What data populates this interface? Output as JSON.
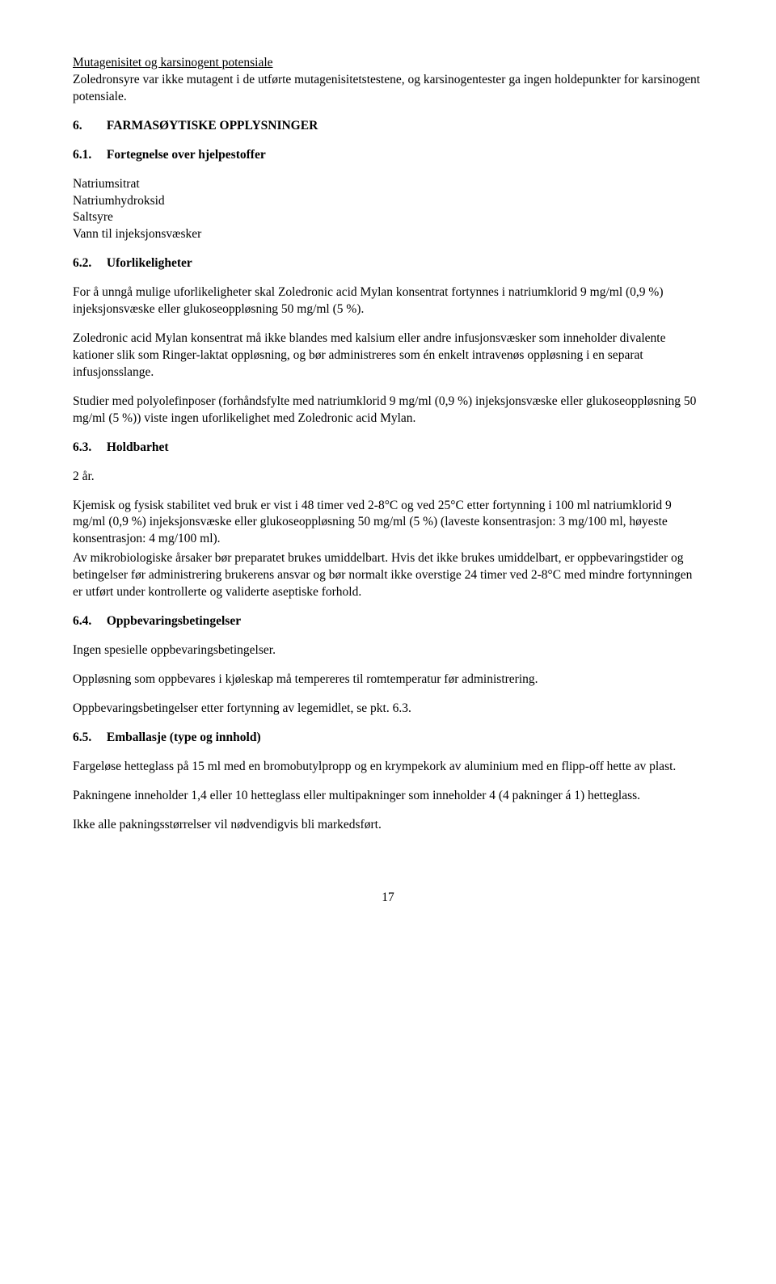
{
  "section_mutagen": {
    "heading": "Mutagenisitet og karsinogent potensiale",
    "body": "Zoledronsyre var ikke mutagent i de utførte mutagenisitetstestene, og karsinogentester ga ingen holdepunkter for karsinogent potensiale."
  },
  "section6": {
    "num": "6.",
    "title": "FARMASØYTISKE OPPLYSNINGER"
  },
  "section61": {
    "num": "6.1.",
    "title": "Fortegnelse over hjelpestoffer",
    "items": [
      "Natriumsitrat",
      "Natriumhydroksid",
      "Saltsyre",
      "Vann til injeksjonsvæsker"
    ]
  },
  "section62": {
    "num": "6.2.",
    "title": "Uforlikeligheter",
    "p1": "For å unngå mulige uforlikeligheter skal Zoledronic acid Mylan konsentrat fortynnes i natriumklorid 9 mg/ml (0,9 %) injeksjonsvæske eller glukoseoppløsning 50 mg/ml (5 %).",
    "p2": "Zoledronic acid Mylan konsentrat må ikke blandes med kalsium eller andre infusjonsvæsker som inneholder divalente kationer slik som Ringer-laktat oppløsning, og bør administreres som én enkelt intravenøs oppløsning i en separat infusjonsslange.",
    "p3": "Studier med polyolefinposer (forhåndsfylte med natriumklorid 9 mg/ml (0,9 %) injeksjonsvæske eller glukoseoppløsning 50 mg/ml (5 %)) viste ingen uforlikelighet med Zoledronic acid Mylan."
  },
  "section63": {
    "num": "6.3.",
    "title": "Holdbarhet",
    "shelf": "2 år.",
    "p1a": "Kjemisk og fysisk stabilitet ved bruk er vist i 48 timer ved 2-8°C og ved 25°C etter fortynning i 100 ml natriumklorid 9 mg/ml (0,9 %) injeksjonsvæske eller glukoseoppløsning 50 mg/ml (5 %) (laveste konsentrasjon: 3 mg/100 ml, høyeste konsentrasjon: 4 mg/100 ml).",
    "p1b": "Av mikrobiologiske årsaker bør preparatet brukes umiddelbart. Hvis det ikke brukes umiddelbart, er oppbevaringstider og betingelser før administrering brukerens ansvar og bør normalt ikke overstige 24 timer ved 2-8°C med mindre fortynningen er utført under kontrollerte og validerte aseptiske forhold."
  },
  "section64": {
    "num": "6.4.",
    "title": "Oppbevaringsbetingelser",
    "p1": "Ingen spesielle oppbevaringsbetingelser.",
    "p2": "Oppløsning som oppbevares i kjøleskap må tempereres til romtemperatur før administrering.",
    "p3": "Oppbevaringsbetingelser etter fortynning av legemidlet, se pkt. 6.3."
  },
  "section65": {
    "num": "6.5.",
    "title": "Emballasje (type og innhold)",
    "p1": "Fargeløse hetteglass på 15 ml med en bromobutylpropp og en krympekork av aluminium med en flipp-off hette av plast.",
    "p2": "Pakningene inneholder 1,4 eller 10 hetteglass eller multipakninger som inneholder 4 (4 pakninger á 1) hetteglass.",
    "p3": "Ikke alle pakningsstørrelser vil nødvendigvis bli markedsført."
  },
  "page_number": "17"
}
